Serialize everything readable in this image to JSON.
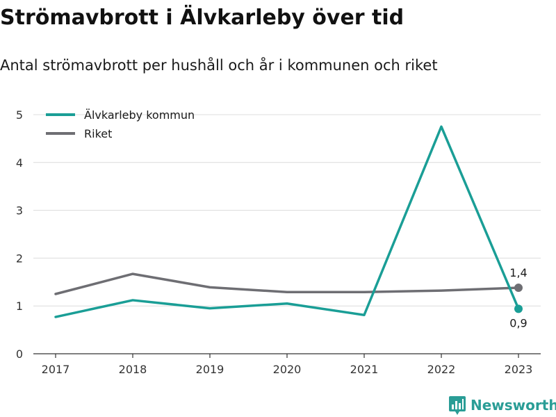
{
  "chart_data": {
    "type": "line",
    "title": "Strömavbrott i Älvkarleby över tid",
    "subtitle": "Antal strömavbrott per hushåll och år i kommunen och riket",
    "x": [
      "2017",
      "2018",
      "2019",
      "2020",
      "2021",
      "2022",
      "2023"
    ],
    "y_ticks": [
      "0",
      "1",
      "2",
      "3",
      "4",
      "5"
    ],
    "ylim": [
      0,
      5
    ],
    "grid": true,
    "legend_position": "top-left",
    "series": [
      {
        "name": "Älvkarleby kommun",
        "color": "#1a9e96",
        "values": [
          0.77,
          1.12,
          0.95,
          1.05,
          0.81,
          4.75,
          0.94
        ],
        "end_label": "0,9"
      },
      {
        "name": "Riket",
        "color": "#6e6e73",
        "values": [
          1.25,
          1.67,
          1.39,
          1.29,
          1.29,
          1.32,
          1.38
        ],
        "end_label": "1,4"
      }
    ]
  },
  "branding": {
    "logo_text": "Newsworthy",
    "logo_icon": "bar-chart-badge-icon"
  }
}
